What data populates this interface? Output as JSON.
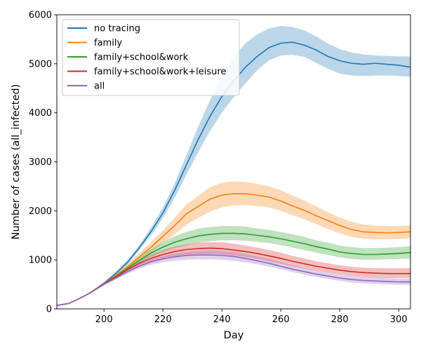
{
  "chart_data": {
    "type": "line",
    "title": "",
    "xlabel": "Day",
    "ylabel": "Number of cases (all_infected)",
    "xlim": [
      184,
      304
    ],
    "ylim": [
      0,
      6000
    ],
    "x_ticks": [
      200,
      220,
      240,
      260,
      280,
      300
    ],
    "y_ticks": [
      0,
      1000,
      2000,
      3000,
      4000,
      5000,
      6000
    ],
    "grid": false,
    "legend_position": "top-left",
    "x": [
      184,
      188,
      192,
      196,
      200,
      204,
      208,
      212,
      216,
      220,
      224,
      228,
      232,
      236,
      240,
      244,
      248,
      252,
      256,
      260,
      264,
      268,
      272,
      276,
      280,
      284,
      288,
      292,
      296,
      300,
      304
    ],
    "series": [
      {
        "name": "no tracing",
        "color": "#1f77b4",
        "values": [
          70,
          110,
          220,
          350,
          520,
          720,
          950,
          1250,
          1580,
          1960,
          2420,
          2940,
          3460,
          3930,
          4330,
          4650,
          4930,
          5150,
          5330,
          5420,
          5440,
          5380,
          5280,
          5150,
          5060,
          5010,
          4990,
          5010,
          4990,
          4970,
          4930
        ],
        "lower": [
          70,
          110,
          220,
          340,
          490,
          690,
          910,
          1200,
          1500,
          1850,
          2270,
          2740,
          3200,
          3630,
          4000,
          4320,
          4600,
          4870,
          5070,
          5170,
          5180,
          5140,
          5020,
          4900,
          4800,
          4760,
          4750,
          4760,
          4760,
          4750,
          4740
        ],
        "upper": [
          80,
          120,
          230,
          370,
          550,
          760,
          1000,
          1300,
          1660,
          2070,
          2560,
          3140,
          3720,
          4260,
          4740,
          5130,
          5420,
          5600,
          5720,
          5770,
          5750,
          5680,
          5560,
          5410,
          5300,
          5230,
          5190,
          5170,
          5160,
          5150,
          5150
        ]
      },
      {
        "name": "family",
        "color": "#ff7f0e",
        "values": [
          70,
          110,
          220,
          350,
          510,
          680,
          860,
          1060,
          1260,
          1480,
          1700,
          1940,
          2090,
          2240,
          2320,
          2350,
          2350,
          2320,
          2280,
          2200,
          2100,
          2010,
          1900,
          1800,
          1700,
          1620,
          1570,
          1560,
          1550,
          1560,
          1570
        ],
        "lower": [
          70,
          110,
          220,
          340,
          490,
          640,
          800,
          980,
          1160,
          1340,
          1520,
          1720,
          1860,
          1980,
          2070,
          2110,
          2120,
          2100,
          2070,
          2000,
          1910,
          1830,
          1730,
          1630,
          1540,
          1470,
          1430,
          1420,
          1420,
          1430,
          1440
        ],
        "upper": [
          80,
          120,
          230,
          370,
          530,
          720,
          920,
          1140,
          1360,
          1600,
          1860,
          2130,
          2310,
          2480,
          2570,
          2600,
          2590,
          2550,
          2500,
          2420,
          2310,
          2210,
          2090,
          1970,
          1860,
          1780,
          1720,
          1700,
          1690,
          1690,
          1700
        ]
      },
      {
        "name": "family+school&work",
        "color": "#2ca02c",
        "values": [
          70,
          110,
          220,
          350,
          510,
          660,
          830,
          990,
          1140,
          1260,
          1360,
          1430,
          1490,
          1520,
          1540,
          1540,
          1530,
          1500,
          1470,
          1430,
          1380,
          1330,
          1270,
          1220,
          1160,
          1130,
          1110,
          1110,
          1120,
          1130,
          1150
        ],
        "lower": [
          70,
          110,
          220,
          340,
          490,
          630,
          790,
          930,
          1060,
          1160,
          1240,
          1300,
          1350,
          1380,
          1400,
          1400,
          1390,
          1370,
          1340,
          1300,
          1250,
          1200,
          1150,
          1100,
          1050,
          1020,
          1000,
          1000,
          1010,
          1020,
          1030
        ],
        "upper": [
          80,
          120,
          230,
          370,
          530,
          690,
          870,
          1050,
          1220,
          1360,
          1480,
          1570,
          1640,
          1670,
          1690,
          1690,
          1680,
          1640,
          1610,
          1570,
          1520,
          1470,
          1400,
          1350,
          1290,
          1260,
          1240,
          1240,
          1250,
          1260,
          1280
        ]
      },
      {
        "name": "family+school&work+leisure",
        "color": "#d62728",
        "values": [
          70,
          110,
          220,
          350,
          510,
          650,
          800,
          930,
          1030,
          1110,
          1170,
          1210,
          1230,
          1240,
          1230,
          1200,
          1170,
          1130,
          1080,
          1030,
          970,
          920,
          870,
          830,
          790,
          760,
          740,
          730,
          720,
          720,
          720
        ],
        "lower": [
          70,
          110,
          220,
          340,
          490,
          620,
          760,
          870,
          960,
          1020,
          1070,
          1100,
          1120,
          1120,
          1110,
          1090,
          1060,
          1020,
          970,
          920,
          870,
          820,
          780,
          740,
          700,
          670,
          650,
          640,
          630,
          630,
          630
        ],
        "upper": [
          80,
          120,
          230,
          370,
          530,
          680,
          840,
          990,
          1110,
          1200,
          1270,
          1320,
          1350,
          1360,
          1360,
          1330,
          1290,
          1250,
          1200,
          1150,
          1080,
          1030,
          970,
          930,
          890,
          860,
          840,
          830,
          830,
          830,
          830
        ]
      },
      {
        "name": "all",
        "color": "#9467bd",
        "values": [
          70,
          110,
          220,
          350,
          500,
          630,
          760,
          870,
          960,
          1020,
          1060,
          1090,
          1100,
          1100,
          1090,
          1070,
          1030,
          980,
          930,
          870,
          810,
          760,
          710,
          670,
          630,
          600,
          580,
          570,
          560,
          550,
          550
        ],
        "lower": [
          70,
          110,
          220,
          340,
          480,
          600,
          720,
          820,
          900,
          950,
          980,
          1000,
          1010,
          1010,
          1000,
          980,
          950,
          910,
          860,
          810,
          750,
          700,
          650,
          610,
          570,
          540,
          520,
          510,
          500,
          490,
          490
        ],
        "upper": [
          80,
          120,
          230,
          370,
          520,
          660,
          800,
          920,
          1010,
          1080,
          1130,
          1160,
          1180,
          1190,
          1180,
          1160,
          1120,
          1070,
          1020,
          960,
          890,
          830,
          780,
          740,
          700,
          670,
          650,
          640,
          630,
          620,
          620
        ]
      }
    ]
  }
}
